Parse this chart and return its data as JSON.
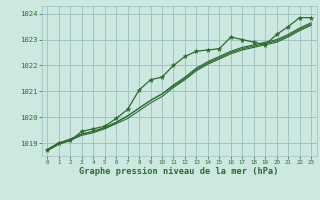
{
  "bg_color": "#cce8e0",
  "grid_color": "#9bbfbf",
  "line_color": "#2d6a2d",
  "title": "Graphe pression niveau de la mer (hPa)",
  "xlim": [
    -0.5,
    23.5
  ],
  "ylim": [
    1018.5,
    1024.3
  ],
  "yticks": [
    1019,
    1020,
    1021,
    1022,
    1023,
    1024
  ],
  "xticks": [
    0,
    1,
    2,
    3,
    4,
    5,
    6,
    7,
    8,
    9,
    10,
    11,
    12,
    13,
    14,
    15,
    16,
    17,
    18,
    19,
    20,
    21,
    22,
    23
  ],
  "series_main": [
    1018.75,
    1019.0,
    1019.1,
    1019.45,
    1019.55,
    1019.65,
    1019.95,
    1020.3,
    1021.05,
    1021.45,
    1021.55,
    1022.0,
    1022.35,
    1022.55,
    1022.6,
    1022.65,
    1023.1,
    1023.0,
    1022.9,
    1022.8,
    1023.2,
    1023.5,
    1023.85,
    1023.85
  ],
  "series_line1": [
    1018.75,
    1019.0,
    1019.15,
    1019.35,
    1019.45,
    1019.6,
    1019.8,
    1020.05,
    1020.35,
    1020.65,
    1020.9,
    1021.25,
    1021.55,
    1021.9,
    1022.15,
    1022.35,
    1022.55,
    1022.7,
    1022.8,
    1022.9,
    1023.0,
    1023.2,
    1023.45,
    1023.65
  ],
  "series_line2": [
    1018.75,
    1019.0,
    1019.15,
    1019.35,
    1019.45,
    1019.6,
    1019.8,
    1020.05,
    1020.35,
    1020.65,
    1020.9,
    1021.2,
    1021.5,
    1021.85,
    1022.1,
    1022.3,
    1022.5,
    1022.65,
    1022.75,
    1022.85,
    1022.95,
    1023.15,
    1023.4,
    1023.6
  ],
  "series_line3": [
    1018.7,
    1018.95,
    1019.1,
    1019.3,
    1019.4,
    1019.55,
    1019.75,
    1019.95,
    1020.25,
    1020.55,
    1020.8,
    1021.15,
    1021.45,
    1021.8,
    1022.05,
    1022.25,
    1022.45,
    1022.6,
    1022.7,
    1022.8,
    1022.9,
    1023.1,
    1023.35,
    1023.55
  ]
}
